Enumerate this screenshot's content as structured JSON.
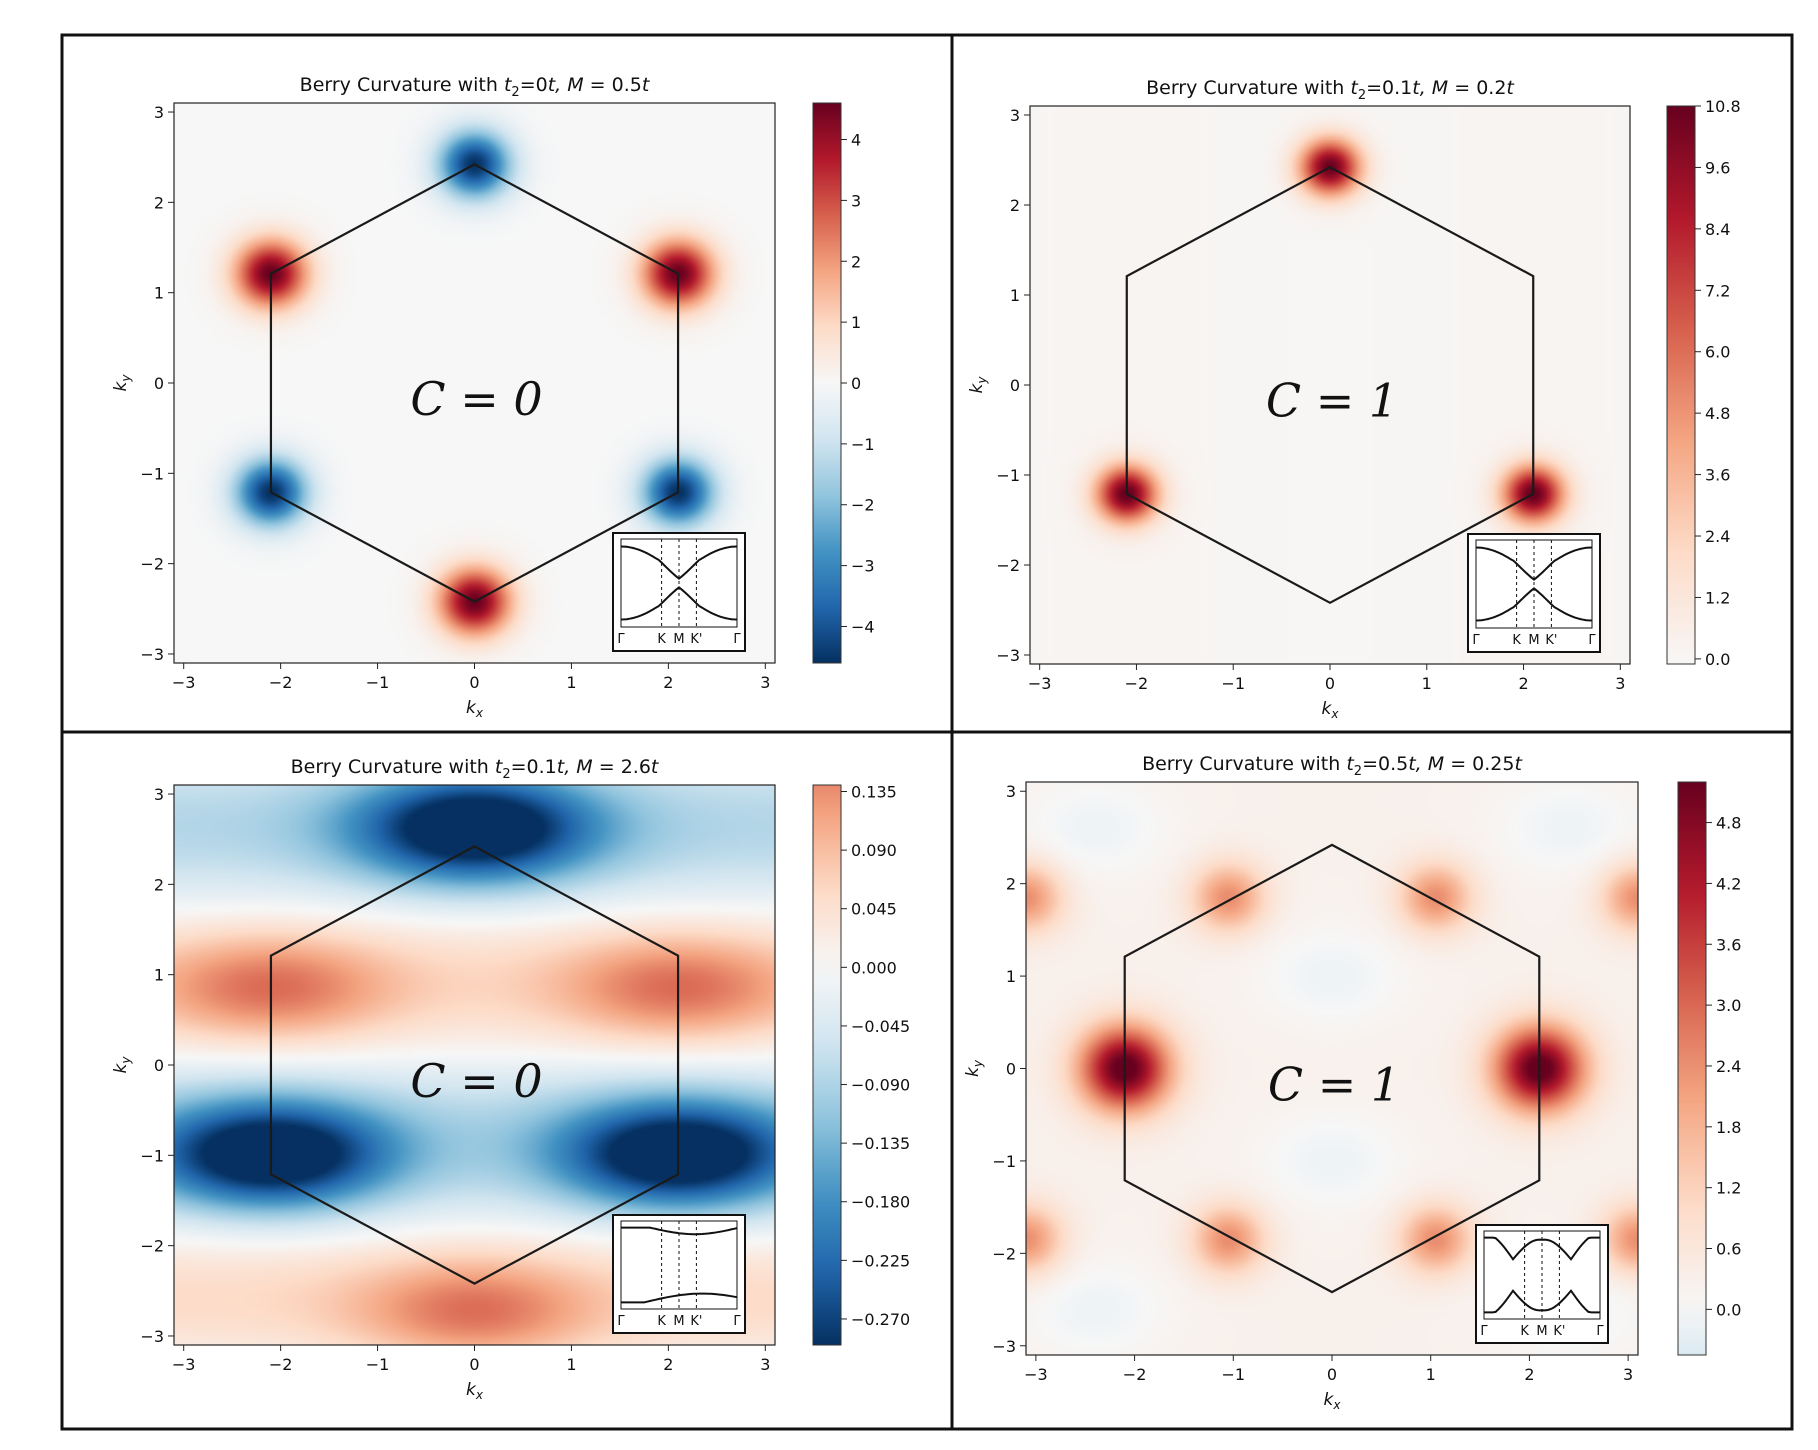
{
  "figure": {
    "border_color": "#111111"
  },
  "panel_common": {
    "xlabel": "k",
    "xlabel_sub": "x",
    "ylabel": "k",
    "ylabel_sub": "y",
    "xticks": [
      -3,
      -2,
      -1,
      0,
      1,
      2,
      3
    ],
    "yticks": [
      -3,
      -2,
      -1,
      0,
      1,
      2,
      3
    ],
    "xlim": [
      -3.1,
      3.1
    ],
    "ylim": [
      -3.1,
      3.1
    ],
    "inset_labels": [
      "Γ",
      "K",
      "M",
      "K'",
      "Γ"
    ]
  },
  "chart_data": [
    {
      "type": "heatmap",
      "title_prefix": "Berry Curvature with ",
      "title_t2": "t",
      "title_t2_sub": "2",
      "title_t2_val": "=0",
      "title_t2_unit": "t",
      "title_m": ", M",
      "title_m_val": " = 0.5",
      "title_m_unit": "t",
      "chern_label": "C = 0",
      "colorbar": {
        "cmap": "RdBu_r",
        "min": -4.6,
        "max": 4.6,
        "ticks": [
          "4",
          "3",
          "2",
          "1",
          "0",
          "−1",
          "−2",
          "−3",
          "−4"
        ],
        "tick_values": [
          4,
          3,
          2,
          1,
          0,
          -1,
          -2,
          -3,
          -4
        ]
      },
      "field_model": "alternating_K_Kprime",
      "hotspots": [
        {
          "kx": 0,
          "ky": 2.42,
          "value": -4.6
        },
        {
          "kx": 2.1,
          "ky": 1.21,
          "value": 4.6
        },
        {
          "kx": 2.1,
          "ky": -1.21,
          "value": -4.6
        },
        {
          "kx": 0,
          "ky": -2.42,
          "value": 4.6
        },
        {
          "kx": -2.1,
          "ky": -1.21,
          "value": -4.6
        },
        {
          "kx": -2.1,
          "ky": 1.21,
          "value": 4.6
        }
      ],
      "inset_band_style": "gapped_dip"
    },
    {
      "type": "heatmap",
      "title_prefix": "Berry Curvature with ",
      "title_t2": "t",
      "title_t2_sub": "2",
      "title_t2_val": "=0.1",
      "title_t2_unit": "t",
      "title_m": ", M",
      "title_m_val": " = 0.2",
      "title_m_unit": "t",
      "chern_label": "C = 1",
      "colorbar": {
        "cmap": "Reds",
        "min": -0.1,
        "max": 10.8,
        "ticks": [
          "10.8",
          "9.6",
          "8.4",
          "7.2",
          "6.0",
          "4.8",
          "3.6",
          "2.4",
          "1.2",
          "0.0"
        ],
        "tick_values": [
          10.8,
          9.6,
          8.4,
          7.2,
          6.0,
          4.8,
          3.6,
          2.4,
          1.2,
          0.0
        ]
      },
      "field_model": "K_only",
      "hotspots": [
        {
          "kx": 0,
          "ky": 2.42,
          "value": 10.8
        },
        {
          "kx": -2.1,
          "ky": -1.21,
          "value": 10.8
        },
        {
          "kx": 2.1,
          "ky": -1.21,
          "value": 10.8
        }
      ],
      "inset_band_style": "gapped_dip"
    },
    {
      "type": "heatmap",
      "title_prefix": "Berry Curvature with ",
      "title_t2": "t",
      "title_t2_sub": "2",
      "title_t2_val": "=0.1",
      "title_t2_unit": "t",
      "title_m": ", M",
      "title_m_val": " = 2.6",
      "title_m_unit": "t",
      "chern_label": "C = 0",
      "colorbar": {
        "cmap": "RdBu_r",
        "min": -0.29,
        "max": 0.14,
        "ticks": [
          "0.135",
          "0.090",
          "0.045",
          "0.000",
          "−0.045",
          "−0.090",
          "−0.135",
          "−0.180",
          "−0.225",
          "−0.270"
        ],
        "tick_values": [
          0.135,
          0.09,
          0.045,
          0.0,
          -0.045,
          -0.09,
          -0.135,
          -0.18,
          -0.225,
          -0.27
        ]
      },
      "field_model": "trivial_bands",
      "hotspots": [
        {
          "kx": 0,
          "ky": 2.62,
          "value": -0.29
        },
        {
          "kx": -2.1,
          "ky": -1.0,
          "value": -0.29
        },
        {
          "kx": 2.1,
          "ky": -1.0,
          "value": -0.29
        },
        {
          "kx": -2.1,
          "ky": 0.85,
          "value": 0.11
        },
        {
          "kx": 2.1,
          "ky": 0.85,
          "value": 0.11
        },
        {
          "kx": 0,
          "ky": -2.75,
          "value": 0.11
        }
      ],
      "inset_band_style": "wide_gap"
    },
    {
      "type": "heatmap",
      "title_prefix": "Berry Curvature with ",
      "title_t2": "t",
      "title_t2_sub": "2",
      "title_t2_val": "=0.5",
      "title_t2_unit": "t",
      "title_m": ", M",
      "title_m_val": " = 0.25",
      "title_m_unit": "t",
      "chern_label": "C = 1",
      "colorbar": {
        "cmap": "RdBu_r_pos",
        "min": -0.45,
        "max": 5.2,
        "ticks": [
          "4.8",
          "4.2",
          "3.6",
          "3.0",
          "2.4",
          "1.8",
          "1.2",
          "0.6",
          "0.0"
        ],
        "tick_values": [
          4.8,
          4.2,
          3.6,
          3.0,
          2.4,
          1.8,
          1.2,
          0.6,
          0.0
        ]
      },
      "field_model": "haldane_strong",
      "hotspots": [
        {
          "kx": -2.1,
          "ky": 0,
          "value": 5.2
        },
        {
          "kx": 2.1,
          "ky": 0,
          "value": 5.2
        },
        {
          "kx": -1.05,
          "ky": 1.85,
          "value": 2.2
        },
        {
          "kx": 1.05,
          "ky": 1.85,
          "value": 2.2
        },
        {
          "kx": -1.05,
          "ky": -1.85,
          "value": 2.2
        },
        {
          "kx": 1.05,
          "ky": -1.85,
          "value": 2.2
        },
        {
          "kx": -3.1,
          "ky": 1.85,
          "value": 2.2
        },
        {
          "kx": 3.1,
          "ky": 1.85,
          "value": 2.2
        },
        {
          "kx": -3.1,
          "ky": -1.85,
          "value": 2.2
        },
        {
          "kx": 3.1,
          "ky": -1.85,
          "value": 2.2
        },
        {
          "kx": 0,
          "ky": 1.0,
          "value": -0.4
        },
        {
          "kx": 0,
          "ky": -1.0,
          "value": -0.4
        },
        {
          "kx": -2.4,
          "ky": 2.6,
          "value": -0.4
        },
        {
          "kx": 2.4,
          "ky": 2.6,
          "value": -0.4
        },
        {
          "kx": -2.4,
          "ky": -2.6,
          "value": -0.4
        },
        {
          "kx": 2.4,
          "ky": -2.6,
          "value": -0.4
        }
      ],
      "inset_band_style": "double_dip"
    }
  ]
}
